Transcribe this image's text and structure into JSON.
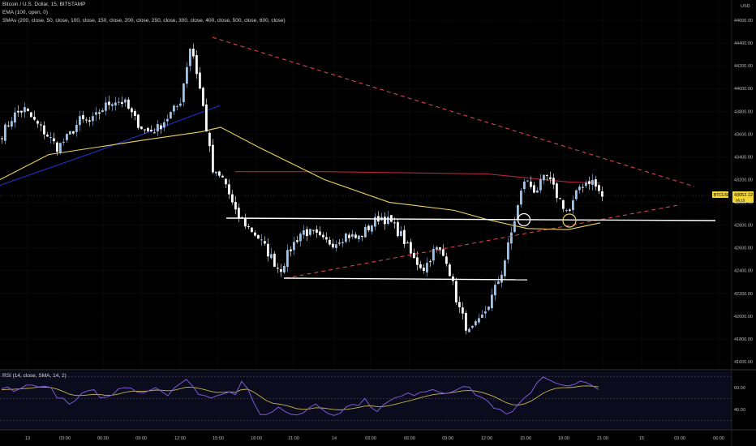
{
  "header": {
    "line1": "Bitcoin / U.S. Dollar, 15, BITSTAMP",
    "line2": "EMA (100, open, 0)",
    "line3": "SMAs (200, close, 50, close, 100, close, 150, close, 200, close, 250, close, 300, close, 400, close, 500, close, 600, close)"
  },
  "currency_label": "USD",
  "price_tag": {
    "symbol": "BTCUSD",
    "price": "43052.12",
    "countdown": "06:15"
  },
  "rsi_label": "RSI (14, close, SMA, 14, 2)",
  "colors": {
    "up": "#9ec3ec",
    "down": "#ffffff",
    "ema": "#2230c8",
    "sma_red": "#b3253b",
    "sma_yellow": "#ead35a",
    "trend": "#e64a57",
    "rsi": "#7c5ad8",
    "rsi_ma": "#c8b44a"
  },
  "chart_data": {
    "type": "candlestick",
    "xlabels": [
      "13",
      "03:00",
      "06:00",
      "09:00",
      "12:00",
      "15:00",
      "18:00",
      "21:00",
      "14",
      "03:00",
      "06:00",
      "09:00",
      "12:00",
      "15:00",
      "18:00",
      "21:00",
      "15",
      "03:00",
      "06:00"
    ],
    "ylabels": [
      "44600.00",
      "44400.00",
      "44200.00",
      "44000.00",
      "43800.00",
      "43600.00",
      "43400.00",
      "43200.00",
      "43000.00",
      "42800.00",
      "42600.00",
      "42400.00",
      "42200.00",
      "42000.00",
      "41800.00",
      "41600.00"
    ],
    "ylim": [
      41520,
      44700
    ],
    "price_anchors": [
      43600,
      43760,
      43820,
      43700,
      43600,
      43480,
      43580,
      43720,
      43700,
      43820,
      43900,
      43880,
      43720,
      43620,
      43650,
      43760,
      43870,
      44400,
      43900,
      43250,
      43200,
      42900,
      42800,
      42700,
      42550,
      42400,
      42600,
      42750,
      42720,
      42650,
      42650,
      42720,
      42680,
      42780,
      42880,
      42820,
      42700,
      42500,
      42420,
      42600,
      42500,
      42100,
      41850,
      41950,
      42150,
      42400,
      42800,
      43200,
      43100,
      43230,
      43050,
      42900,
      43150,
      43200,
      43050
    ],
    "ema100": [
      [
        0,
        43150
      ],
      [
        120,
        43450
      ],
      [
        233,
        43750
      ],
      [
        271,
        43850
      ]
    ],
    "sma_yellow": [
      [
        0,
        43200
      ],
      [
        60,
        43420
      ],
      [
        180,
        43550
      ],
      [
        248,
        43620
      ],
      [
        272,
        43660
      ],
      [
        320,
        43480
      ],
      [
        400,
        43200
      ],
      [
        480,
        43000
      ],
      [
        560,
        42930
      ],
      [
        600,
        42850
      ],
      [
        650,
        42770
      ],
      [
        700,
        42760
      ],
      [
        740,
        42820
      ]
    ],
    "sma_red": [
      [
        290,
        43270
      ],
      [
        400,
        43270
      ],
      [
        600,
        43250
      ],
      [
        700,
        43180
      ],
      [
        740,
        43170
      ]
    ],
    "rsi_ylabels": [
      "60.00",
      "40.00"
    ],
    "rsi_values": [
      58,
      60,
      59,
      60,
      61,
      62,
      63,
      61,
      58,
      53,
      48,
      44,
      48,
      53,
      55,
      56,
      53,
      50,
      54,
      58,
      62,
      60,
      58,
      56,
      58,
      61,
      57,
      55,
      60,
      64,
      66,
      60,
      56,
      53,
      50,
      52,
      56,
      58,
      54,
      68,
      60,
      45,
      37,
      33,
      36,
      42,
      40,
      36,
      34,
      38,
      42,
      46,
      41,
      38,
      37,
      38,
      42,
      44,
      46,
      48,
      44,
      40,
      43,
      47,
      50,
      52,
      53,
      55,
      57,
      58,
      59,
      57,
      56,
      58,
      60,
      61,
      58,
      55,
      51,
      47,
      43,
      38,
      35,
      37,
      43,
      50,
      57,
      65,
      70,
      68,
      66,
      63,
      60,
      62,
      65,
      63,
      60,
      58
    ]
  }
}
